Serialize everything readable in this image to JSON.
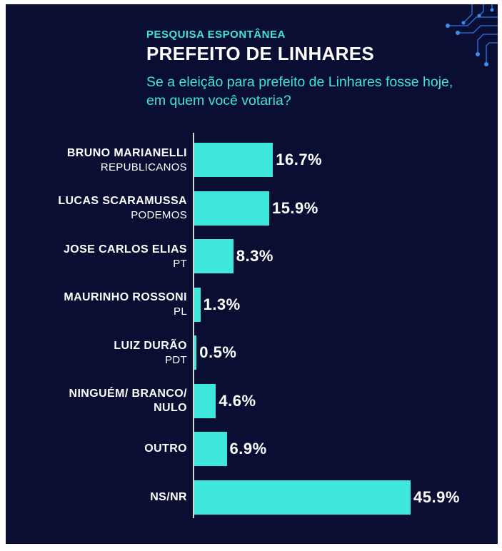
{
  "header": {
    "kicker": "PESQUISA ESPONTÂNEA",
    "title": "PREFEITO DE LINHARES",
    "question": "Se a eleição para prefeito de Linhares fosse hoje, em quem você votaria?"
  },
  "colors": {
    "background": "#0b0e33",
    "bar": "#3ee8dc",
    "accent_text": "#3fe4dc",
    "text": "#ffffff"
  },
  "chart_data": {
    "type": "bar",
    "orientation": "horizontal",
    "unit": "%",
    "categories": [
      {
        "name": "BRUNO MARIANELLI",
        "party": "REPUBLICANOS"
      },
      {
        "name": "LUCAS SCARAMUSSA",
        "party": "PODEMOS"
      },
      {
        "name": "JOSE CARLOS ELIAS",
        "party": "PT"
      },
      {
        "name": "MAURINHO ROSSONI",
        "party": "PL"
      },
      {
        "name": "LUIZ DURÃO",
        "party": "PDT"
      },
      {
        "name": "NINGUÉM/ BRANCO/ NULO",
        "party": ""
      },
      {
        "name": "OUTRO",
        "party": ""
      },
      {
        "name": "NS/NR",
        "party": ""
      }
    ],
    "values": [
      16.7,
      15.9,
      8.3,
      1.3,
      0.5,
      4.6,
      6.9,
      45.9
    ],
    "labels": [
      "16.7%",
      "15.9%",
      "8.3%",
      "1.3%",
      "0.5%",
      "4.6%",
      "6.9%",
      "45.9%"
    ],
    "xlim": [
      0,
      45.9
    ]
  }
}
